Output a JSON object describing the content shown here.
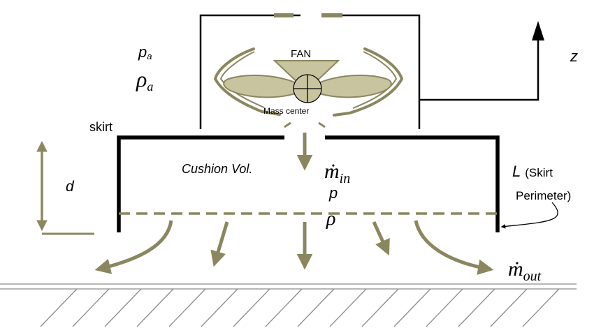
{
  "labels": {
    "p_a": "p",
    "p_a_sub": "a",
    "rho_a": "ρ",
    "rho_a_sub": "a",
    "fan": "FAN",
    "mass_center": "Mass center",
    "skirt": "skirt",
    "cushion_vol": "Cushion Vol.",
    "d": "d",
    "m_in": "ṁ",
    "m_in_sub": "in",
    "p": "p",
    "rho": "ρ",
    "z": "z",
    "L": "L",
    "skirt_open": "(Skirt",
    "perimeter": "Perimeter)",
    "m_out": "ṁ",
    "m_out_sub": "out"
  },
  "colors": {
    "olive": "#8a8760",
    "olive_fill": "#c8c4a0",
    "olive_dark": "#6e6b48",
    "black": "#000000",
    "ground": "#8c8c8c"
  }
}
